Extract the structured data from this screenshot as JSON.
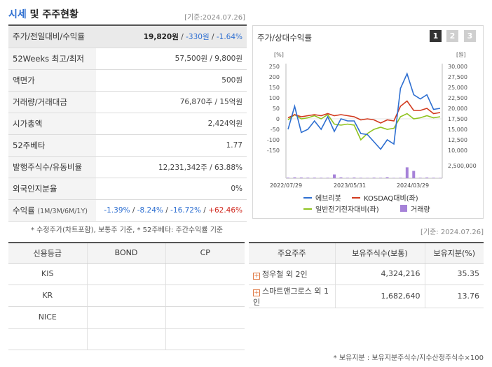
{
  "header": {
    "title_accent": "시세",
    "title_rest": " 및 주주현황",
    "date": "[기준:2024.07.26]"
  },
  "price_table": {
    "rows": [
      {
        "label": "주가/전일대비/수익률"
      },
      {
        "label": "52Weeks 최고/최저",
        "value": "57,500원 / 9,800원"
      },
      {
        "label": "액면가",
        "value": "500원"
      },
      {
        "label": "거래량/거래대금",
        "value": "76,870주 / 15억원"
      },
      {
        "label": "시가총액",
        "value": "2,424억원"
      },
      {
        "label": "52주베타",
        "value": "1.77"
      },
      {
        "label": "발행주식수/유동비율",
        "value": "12,231,342주 / 63.88%"
      },
      {
        "label": "외국인지분율",
        "value": "0%"
      },
      {
        "label": "수익률",
        "label_sub": "(1M/3M/6M/1Y)"
      }
    ],
    "price": "19,820원",
    "change": "-330원",
    "change_pct": "-1.64%",
    "returns": {
      "m1": "-1.39%",
      "m3": "-8.24%",
      "m6": "-16.72%",
      "y1": "+62.46%"
    }
  },
  "note1": "* 수정주가(차트포함), 보통주 기준, * 52주베타: 주간수익률 기준",
  "chart": {
    "title": "주가/상대수익률",
    "pages": [
      "1",
      "2",
      "3"
    ],
    "left_unit": "[%]",
    "right_unit": "[원]",
    "legend": {
      "s1": "에브리봇",
      "s2": "KOSDAQ대비(좌)",
      "s3": "일반전기전자대비(좌)",
      "s4": "거래량"
    },
    "colors": {
      "s1": "#2e6fd1",
      "s2": "#d23a1e",
      "s3": "#8fc31f",
      "vol": "#a682d8"
    }
  },
  "chart_data": {
    "type": "line",
    "x_ticks": [
      "2022/07/29",
      "2023/05/31",
      "2024/03/29"
    ],
    "y_left_ticks": [
      250,
      200,
      150,
      100,
      50,
      0,
      -50,
      -100,
      -150
    ],
    "y_left_range": [
      -150,
      250
    ],
    "y_right_ticks": [
      "30,000",
      "27,500",
      "25,000",
      "22,500",
      "20,000",
      "17,500",
      "15,000",
      "12,500",
      "10,000"
    ],
    "y_right_range": [
      10000,
      30000
    ],
    "volume_tick": "2,500,000",
    "volume_range": [
      0,
      5500000
    ],
    "series": [
      {
        "name": "에브리봇",
        "values": [
          -50,
          60,
          -65,
          -50,
          -10,
          -50,
          10,
          -60,
          0,
          -10,
          -10,
          -70,
          -75,
          -110,
          -145,
          -100,
          -120,
          145,
          215,
          115,
          95,
          115,
          45,
          50
        ]
      },
      {
        "name": "KOSDAQ대비(좌)",
        "values": [
          5,
          20,
          10,
          15,
          20,
          15,
          25,
          15,
          20,
          15,
          10,
          -5,
          0,
          -5,
          -20,
          -5,
          -10,
          60,
          85,
          40,
          40,
          50,
          25,
          30
        ]
      },
      {
        "name": "일반전기전자대비(좌)",
        "values": [
          -5,
          20,
          0,
          5,
          15,
          0,
          20,
          -25,
          -30,
          -25,
          -30,
          -100,
          -70,
          -50,
          -40,
          -50,
          -45,
          10,
          25,
          0,
          5,
          15,
          5,
          10
        ]
      },
      {
        "name": "거래량",
        "values": [
          250000,
          350000,
          300000,
          250000,
          250000,
          200000,
          200000,
          1500000,
          350000,
          200000,
          300000,
          200000,
          150000,
          250000,
          200000,
          400000,
          150000,
          200000,
          4300000,
          2900000,
          200000,
          300000,
          200000,
          150000
        ]
      }
    ]
  },
  "date2": "[기준: 2024.07.26]",
  "credit_table": {
    "headers": [
      "신용등급",
      "BOND",
      "CP"
    ],
    "rows": [
      [
        "KIS",
        "",
        ""
      ],
      [
        "KR",
        "",
        ""
      ],
      [
        "NICE",
        "",
        ""
      ],
      [
        "",
        "",
        ""
      ]
    ]
  },
  "holder_table": {
    "headers": [
      "주요주주",
      "보유주식수(보통)",
      "보유지분(%)"
    ],
    "rows": [
      {
        "name": "정우철 외 2인",
        "shares": "4,324,216",
        "pct": "35.35"
      },
      {
        "name": "스마트앤그로스 외 1인",
        "shares": "1,682,640",
        "pct": "13.76"
      }
    ]
  },
  "note2": "* 보유지분 : 보유지분주식수/지수산정주식수×100"
}
